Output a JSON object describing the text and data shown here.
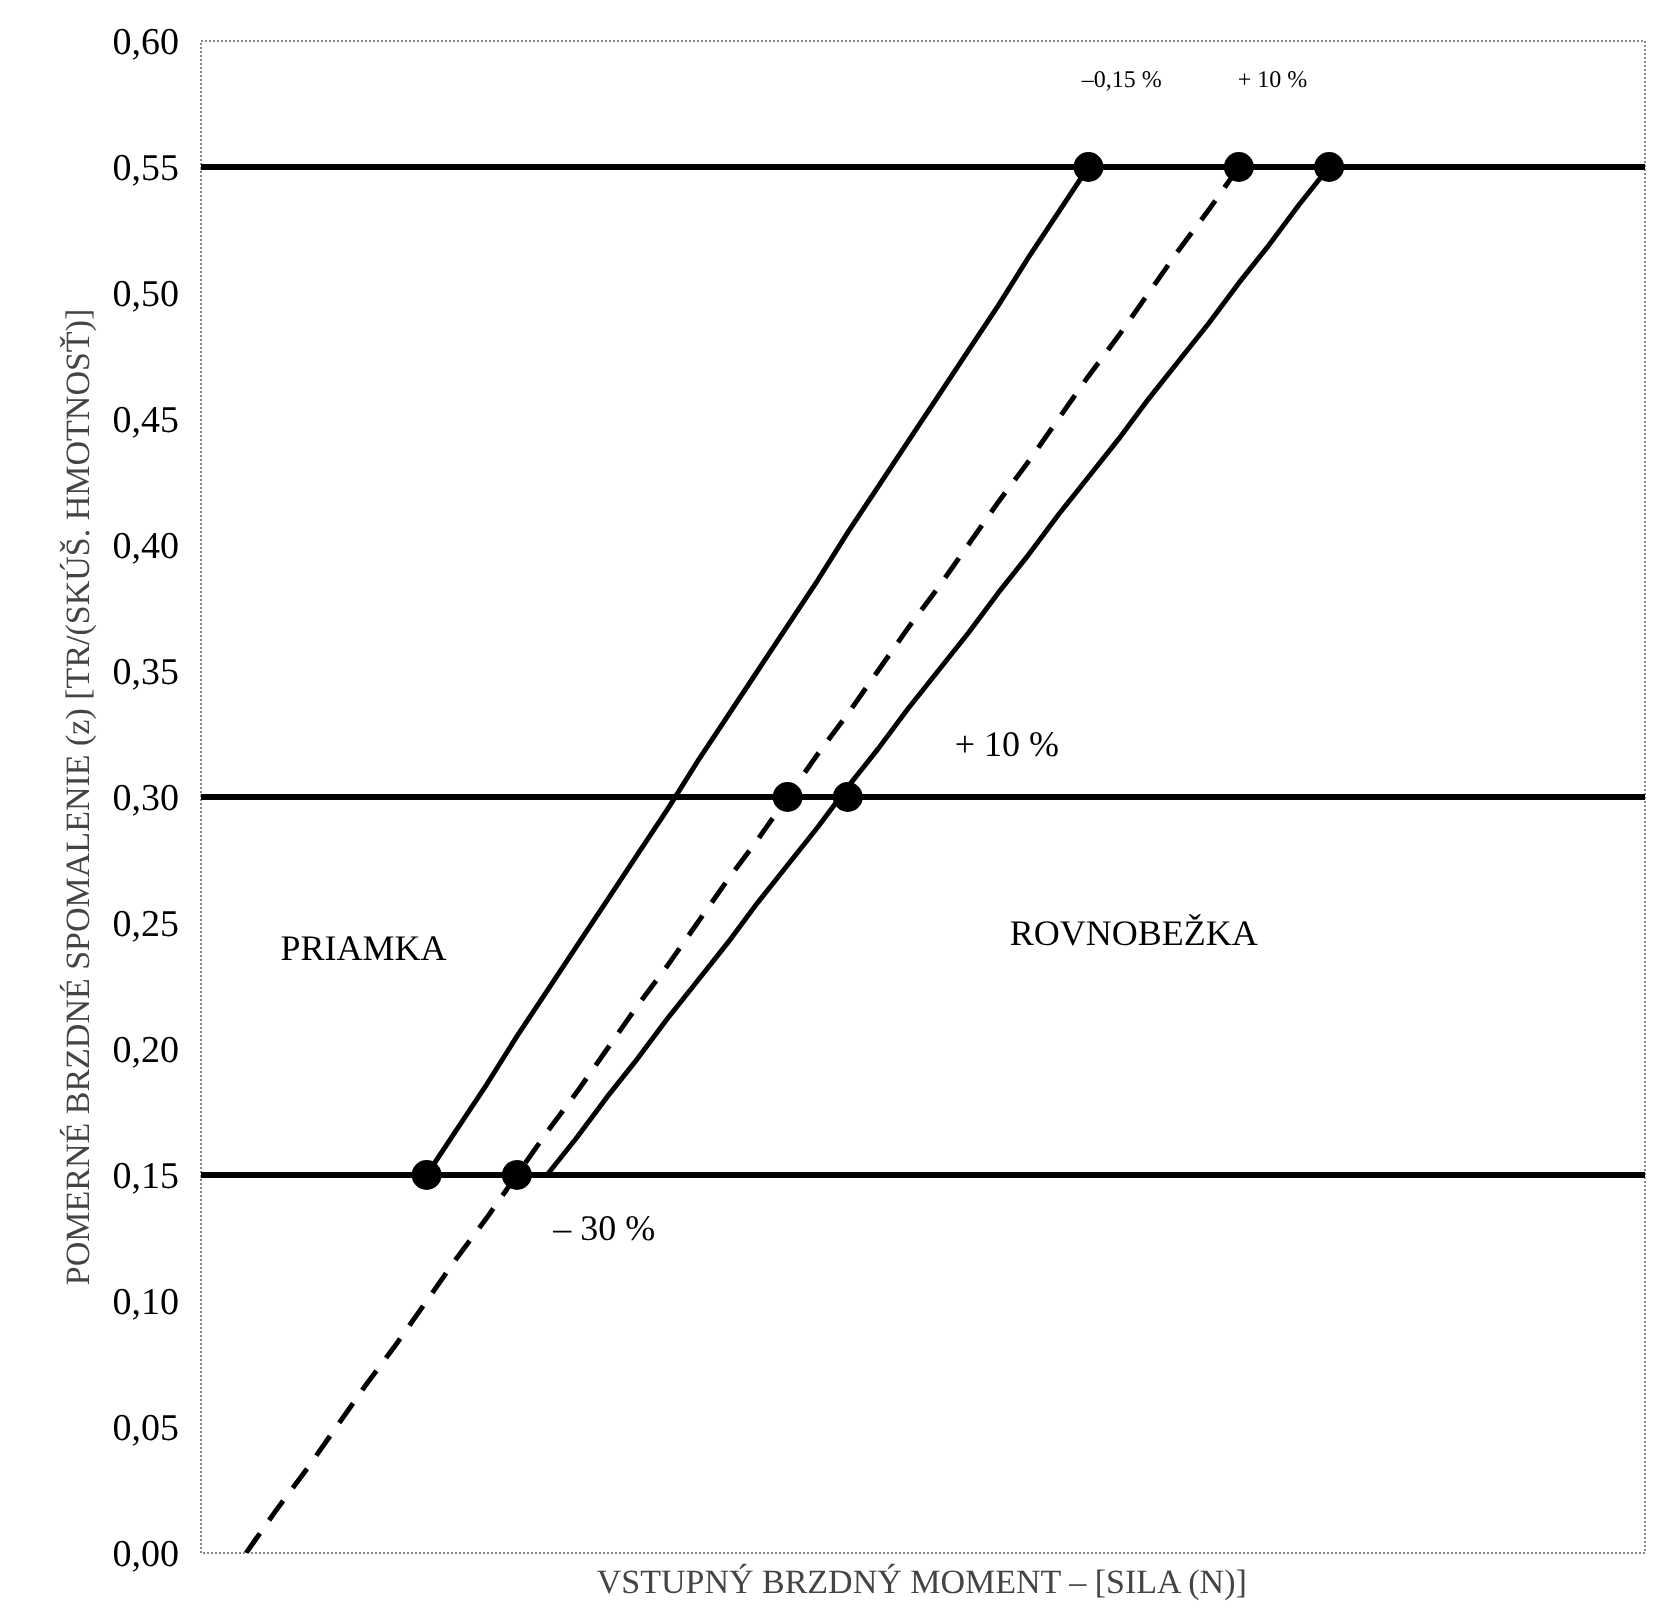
{
  "chart_data": {
    "type": "line",
    "xlabel": "VSTUPNÝ BRZDNÝ MOMENT – [SILA (N)]",
    "ylabel": "POMERNÉ BRZDNÉ SPOMALENIE (z) [TR/(SKÚŠ. HMOTNOSŤ)]",
    "categories": [
      null,
      null,
      null,
      null,
      null,
      null,
      null,
      null,
      null,
      null,
      null,
      null,
      null,
      null,
      null,
      null,
      null,
      null,
      null,
      null,
      null,
      null,
      null,
      null,
      null,
      null,
      null,
      null,
      null,
      null,
      null,
      null,
      null,
      null,
      null,
      null,
      null,
      null,
      null,
      null,
      null,
      null,
      null,
      null,
      null,
      null,
      null,
      null
    ],
    "ylim": [
      0,
      0.6
    ],
    "yticks": [
      {
        "value": 0,
        "label": "0,00"
      },
      {
        "value": 0.05,
        "label": "0,05"
      },
      {
        "value": 0.1,
        "label": "0,10"
      },
      {
        "value": 0.15,
        "label": "0,15"
      },
      {
        "value": 0.2,
        "label": "0,20"
      },
      {
        "value": 0.25,
        "label": "0,25"
      },
      {
        "value": 0.3,
        "label": "0,30"
      },
      {
        "value": 0.35,
        "label": "0,35"
      },
      {
        "value": 0.4,
        "label": "0,40"
      },
      {
        "value": 0.45,
        "label": "0,45"
      },
      {
        "value": 0.5,
        "label": "0,50"
      },
      {
        "value": 0.55,
        "label": "0,55"
      },
      {
        "value": 0.6,
        "label": "0,60"
      }
    ],
    "tick_labels": "y",
    "series": [
      {
        "line_style": "solid",
        "color": "#000000",
        "values": [
          null,
          null,
          null,
          null,
          null,
          null,
          null,
          0.15,
          0.168,
          0.186,
          0.205,
          0.223,
          0.241,
          0.259,
          0.277,
          0.295,
          0.314,
          0.332,
          0.35,
          0.368,
          0.386,
          0.405,
          0.423,
          0.441,
          0.459,
          0.477,
          0.495,
          0.514,
          0.532,
          0.55,
          null,
          null,
          null,
          null,
          null,
          null,
          null,
          null,
          null,
          null,
          null,
          null,
          null,
          null,
          null,
          null,
          null,
          null
        ]
      },
      {
        "line_style": "dashed",
        "color": "#000000",
        "values": [
          null,
          0,
          0.017,
          0.033,
          0.05,
          0.067,
          0.083,
          0.1,
          0.117,
          0.133,
          0.15,
          0.167,
          0.183,
          0.2,
          0.217,
          0.233,
          0.25,
          0.267,
          0.283,
          0.3,
          0.317,
          0.333,
          0.35,
          0.367,
          0.383,
          0.4,
          0.417,
          0.433,
          0.45,
          0.467,
          0.483,
          0.5,
          0.517,
          0.533,
          0.55,
          null,
          null,
          null,
          null,
          null,
          null,
          null,
          null,
          null,
          null,
          null,
          null,
          null
        ]
      },
      {
        "line_style": "solid",
        "color": "#000000",
        "values": [
          null,
          null,
          null,
          null,
          null,
          null,
          null,
          null,
          null,
          null,
          null,
          0.15,
          0.165,
          0.181,
          0.196,
          0.212,
          0.227,
          0.242,
          0.258,
          0.273,
          0.288,
          0.304,
          0.319,
          0.335,
          0.35,
          0.365,
          0.381,
          0.396,
          0.412,
          0.427,
          0.442,
          0.458,
          0.473,
          0.488,
          0.504,
          0.519,
          0.535,
          0.55,
          null,
          null,
          null,
          null,
          null,
          null,
          null,
          null,
          null,
          null
        ]
      },
      {
        "type": "scatter",
        "marker": "circle",
        "color": "#000000",
        "values": [
          null,
          null,
          null,
          null,
          null,
          null,
          null,
          0.15,
          null,
          null,
          0.15,
          null,
          null,
          null,
          null,
          null,
          null,
          null,
          null,
          0.3,
          null,
          0.3,
          null,
          null,
          null,
          null,
          null,
          null,
          null,
          0.55,
          null,
          null,
          null,
          null,
          0.55,
          null,
          null,
          0.55,
          null,
          null,
          null,
          null,
          null,
          null,
          null,
          null,
          null,
          null
        ]
      }
    ],
    "ref_lines": [
      {
        "axis": "y",
        "value": 0.15,
        "color": "#000000"
      },
      {
        "axis": "y",
        "value": 0.3,
        "color": "#000000"
      },
      {
        "axis": "y",
        "value": 0.55,
        "color": "#000000"
      }
    ],
    "annotations": [
      "–0,15 %",
      "+ 10 %",
      "+ 10 %",
      "– 30 %",
      "PRIAMKA",
      "ROVNOBEŽKA"
    ]
  }
}
